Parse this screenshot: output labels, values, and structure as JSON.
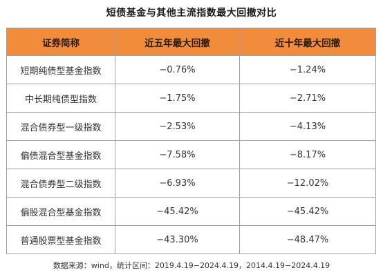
{
  "title": "短债基金与其他主流指数最大回撤对比",
  "table": {
    "headers": [
      "证券简称",
      "近五年最大回撤",
      "近十年最大回撤"
    ],
    "rows": [
      [
        "短期纯债型基金指数",
        "−0.76%",
        "−1.24%"
      ],
      [
        "中长期纯债型指数",
        "−1.75%",
        "−2.71%"
      ],
      [
        "混合债券型一级指数",
        "−2.53%",
        "−4.13%"
      ],
      [
        "偏债混合型基金指数",
        "−7.58%",
        "−8.17%"
      ],
      [
        "混合债券型二级指数",
        "−6.93%",
        "−12.02%"
      ],
      [
        "偏股混合型基金指数",
        "−45.42%",
        "−45.42%"
      ],
      [
        "普通股票型基金指数",
        "−43.30%",
        "−48.47%"
      ]
    ]
  },
  "footnote": "数据来源：wind，统计区间：2019.4.19−2024.4.19，2014.4.19−2024.4.19",
  "colors": {
    "header_bg": "#f08c3c",
    "border": "#a0a0a0"
  }
}
